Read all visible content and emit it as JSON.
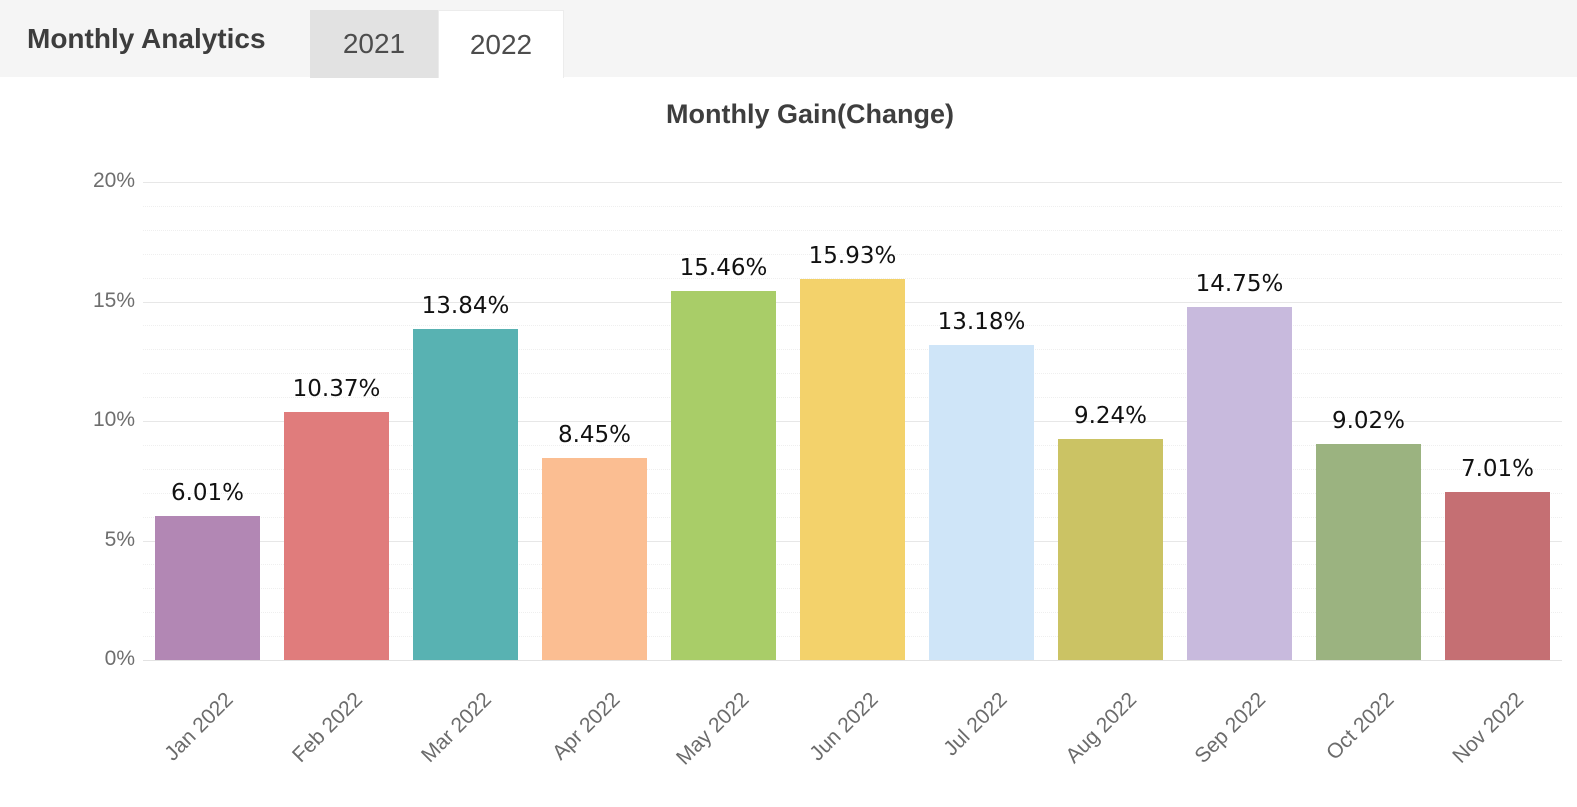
{
  "header": {
    "title": "Monthly Analytics",
    "tabs": [
      {
        "label": "2021",
        "active": false
      },
      {
        "label": "2022",
        "active": true
      }
    ]
  },
  "chart_data": {
    "type": "bar",
    "title": "Monthly Gain(Change)",
    "categories": [
      "Jan 2022",
      "Feb 2022",
      "Mar 2022",
      "Apr 2022",
      "May 2022",
      "Jun 2022",
      "Jul 2022",
      "Aug 2022",
      "Sep 2022",
      "Oct 2022",
      "Nov 2022"
    ],
    "values": [
      6.01,
      10.37,
      13.84,
      8.45,
      15.46,
      15.93,
      13.18,
      9.24,
      14.75,
      9.02,
      7.01
    ],
    "value_labels": [
      "6.01%",
      "10.37%",
      "13.84%",
      "8.45%",
      "15.46%",
      "15.93%",
      "13.18%",
      "9.24%",
      "14.75%",
      "9.02%",
      "7.01%"
    ],
    "bar_colors": [
      "#B287B4",
      "#E07C7C",
      "#58B2B2",
      "#FBBE92",
      "#A9CD68",
      "#F3D26B",
      "#CFE5F8",
      "#CBC364",
      "#C8BADD",
      "#9BB380",
      "#C56F73"
    ],
    "y_ticks": [
      {
        "label": "0%",
        "value": 0
      },
      {
        "label": "5%",
        "value": 5
      },
      {
        "label": "10%",
        "value": 10
      },
      {
        "label": "15%",
        "value": 15
      },
      {
        "label": "20%",
        "value": 20
      }
    ],
    "ylim": [
      0,
      20
    ],
    "xlabel": "",
    "ylabel": "",
    "grid": "major every 5%, dotted minor every 1%",
    "legend": "none"
  },
  "colors": {
    "header_bg": "#f5f5f5",
    "tab_inactive_bg": "#e2e2e2",
    "tab_active_bg": "#ffffff",
    "grid_major": "#e7e7e7",
    "grid_minor": "#efefef",
    "axis_text": "#6e6e6e",
    "value_text": "#111111",
    "title_text": "#3e3e3e"
  }
}
